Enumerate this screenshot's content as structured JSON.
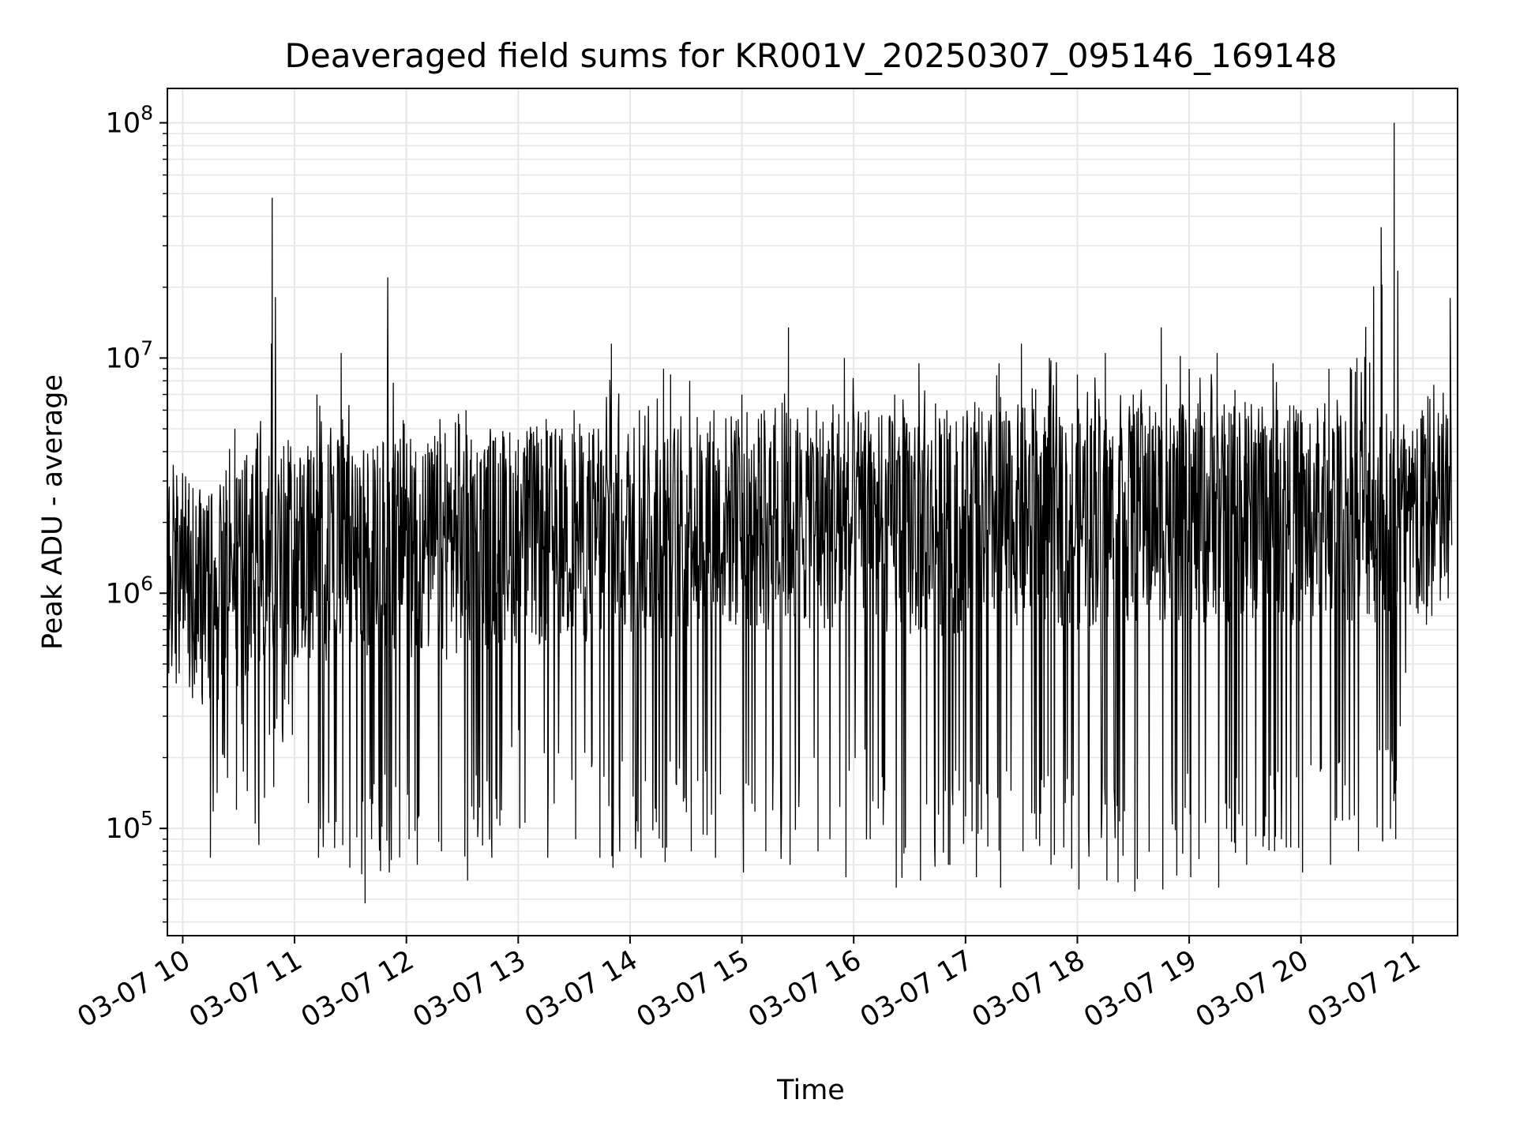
{
  "chart_data": {
    "type": "line",
    "title": "Deaveraged field sums for KR001V_20250307_095146_169148",
    "xlabel": "Time",
    "ylabel": "Peak ADU - average",
    "y_scale": "log",
    "grid": true,
    "xlim": [
      "2025-03-07 09:51:46",
      "2025-03-07 21:24:00"
    ],
    "ylim": [
      35000,
      140000000
    ],
    "x_ticks": [
      "03-07 10",
      "03-07 11",
      "03-07 12",
      "03-07 13",
      "03-07 14",
      "03-07 15",
      "03-07 16",
      "03-07 17",
      "03-07 18",
      "03-07 19",
      "03-07 20",
      "03-07 21"
    ],
    "y_ticks": [
      {
        "base": "10",
        "exp": "5",
        "value": 100000
      },
      {
        "base": "10",
        "exp": "6",
        "value": 1000000
      },
      {
        "base": "10",
        "exp": "7",
        "value": 10000000
      },
      {
        "base": "10",
        "exp": "8",
        "value": 100000000
      }
    ],
    "line_color": "#000000",
    "grid_color": "#e6e6e6",
    "series": [
      {
        "x": [
          "2025-03-07 09:52",
          "2025-03-07 10:03",
          "2025-03-07 10:14",
          "2025-03-07 10:28",
          "2025-03-07 10:40",
          "2025-03-07 10:48",
          "2025-03-07 10:58",
          "2025-03-07 11:12",
          "2025-03-07 11:25",
          "2025-03-07 11:37",
          "2025-03-07 11:50",
          "2025-03-07 12:05",
          "2025-03-07 12:18",
          "2025-03-07 12:32",
          "2025-03-07 12:45",
          "2025-03-07 13:00",
          "2025-03-07 13:15",
          "2025-03-07 13:30",
          "2025-03-07 13:43",
          "2025-03-07 13:50",
          "2025-03-07 14:05",
          "2025-03-07 14:18",
          "2025-03-07 14:32",
          "2025-03-07 14:45",
          "2025-03-07 15:00",
          "2025-03-07 15:12",
          "2025-03-07 15:25",
          "2025-03-07 15:40",
          "2025-03-07 15:55",
          "2025-03-07 16:08",
          "2025-03-07 16:22",
          "2025-03-07 16:35",
          "2025-03-07 16:50",
          "2025-03-07 17:05",
          "2025-03-07 17:18",
          "2025-03-07 17:30",
          "2025-03-07 17:45",
          "2025-03-07 18:00",
          "2025-03-07 18:15",
          "2025-03-07 18:30",
          "2025-03-07 18:45",
          "2025-03-07 19:00",
          "2025-03-07 19:15",
          "2025-03-07 19:30",
          "2025-03-07 19:45",
          "2025-03-07 20:00",
          "2025-03-07 20:15",
          "2025-03-07 20:30",
          "2025-03-07 20:43",
          "2025-03-07 20:50",
          "2025-03-07 21:05",
          "2025-03-07 21:20"
        ],
        "high": [
          2800000,
          2500000,
          2600000,
          5000000,
          4800000,
          48000000,
          3500000,
          7000000,
          10500000,
          4000000,
          22000000,
          4000000,
          5500000,
          6000000,
          5000000,
          4500000,
          5500000,
          6000000,
          5000000,
          11500000,
          6000000,
          9000000,
          8000000,
          6000000,
          7000000,
          6000000,
          13500000,
          6000000,
          10000000,
          6000000,
          7000000,
          9500000,
          6000000,
          6500000,
          9500000,
          11500000,
          10000000,
          8500000,
          10500000,
          7000000,
          13500000,
          9000000,
          10500000,
          6500000,
          9500000,
          6000000,
          9000000,
          10000000,
          36000000,
          100000000,
          6000000,
          18000000
        ],
        "low": [
          700000,
          500000,
          75000,
          120000,
          85000,
          150000,
          250000,
          75000,
          85000,
          48000,
          65000,
          70000,
          80000,
          60000,
          75000,
          100000,
          75000,
          90000,
          75000,
          68000,
          75000,
          72000,
          80000,
          75000,
          65000,
          80000,
          70000,
          80000,
          62000,
          90000,
          56000,
          60000,
          70000,
          62000,
          56000,
          80000,
          70000,
          55000,
          60000,
          54000,
          55000,
          62000,
          56000,
          70000,
          80000,
          65000,
          70000,
          80000,
          88000,
          90000,
          900000,
          1600000
        ],
        "median": [
          1500000,
          1200000,
          1000000,
          1300000,
          1600000,
          1700000,
          1700000,
          1600000,
          1700000,
          1600000,
          1800000,
          1700000,
          1700000,
          1800000,
          1900000,
          2000000,
          1900000,
          2000000,
          2000000,
          2000000,
          2200000,
          2100000,
          2200000,
          2200000,
          2300000,
          2200000,
          2300000,
          2300000,
          2200000,
          2200000,
          2200000,
          2100000,
          2200000,
          2300000,
          2300000,
          2400000,
          2400000,
          2300000,
          2400000,
          2400000,
          2500000,
          2400000,
          2400000,
          2500000,
          2500000,
          2400000,
          2400000,
          2500000,
          2400000,
          2300000,
          2200000,
          2400000
        ]
      }
    ]
  }
}
